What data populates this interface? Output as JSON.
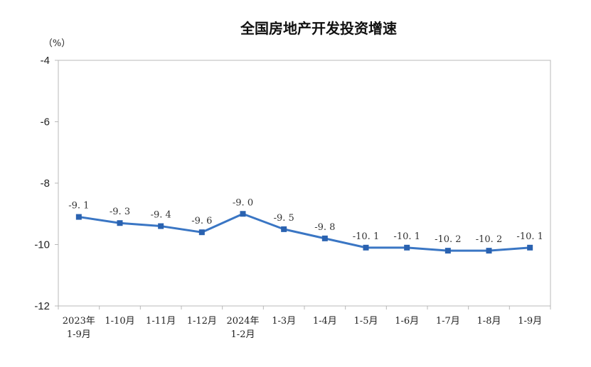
{
  "chart_data": {
    "type": "line",
    "title": "全国房地产开发投资增速",
    "unit_label": "（%）",
    "xlabel": "",
    "ylabel": "",
    "ylim": [
      -12,
      -4
    ],
    "yticks": [
      -4,
      -6,
      -8,
      -10,
      -12
    ],
    "ytick_labels": [
      "-4",
      "-6",
      "-8",
      "-10",
      "-12"
    ],
    "categories": [
      [
        "2023年",
        "1-9月"
      ],
      [
        "1-10月"
      ],
      [
        "1-11月"
      ],
      [
        "1-12月"
      ],
      [
        "2024年",
        "1-2月"
      ],
      [
        "1-3月"
      ],
      [
        "1-4月"
      ],
      [
        "1-5月"
      ],
      [
        "1-6月"
      ],
      [
        "1-7月"
      ],
      [
        "1-8月"
      ],
      [
        "1-9月"
      ]
    ],
    "series": [
      {
        "values": [
          -9.1,
          -9.3,
          -9.4,
          -9.6,
          -9.0,
          -9.5,
          -9.8,
          -10.1,
          -10.1,
          -10.2,
          -10.2,
          -10.1
        ],
        "data_labels": [
          "-9. 1",
          "-9. 3",
          "-9. 4",
          "-9. 6",
          "-9. 0",
          "-9. 5",
          "-9. 8",
          "-10. 1",
          "-10. 1",
          "-10. 2",
          "-10. 2",
          "-10. 1"
        ]
      }
    ],
    "grid": false,
    "legend": "none",
    "colors": {
      "line": "#3a76c4",
      "marker": "#2a62b0",
      "frame": "#b8b8b8"
    }
  }
}
